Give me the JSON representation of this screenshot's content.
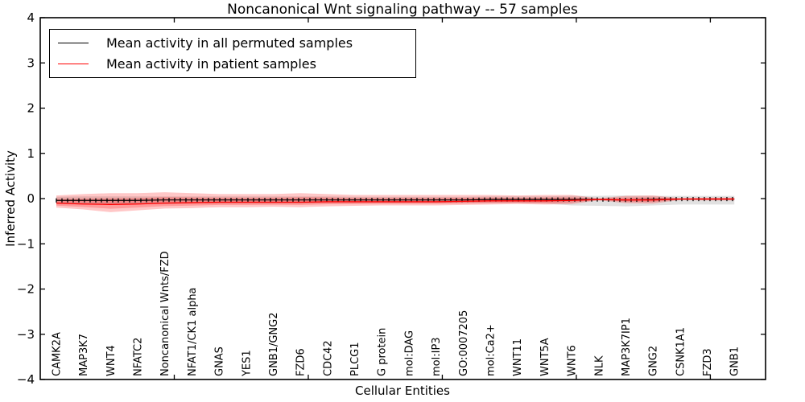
{
  "chart_data": {
    "type": "line",
    "title": "Noncanonical Wnt signaling pathway -- 57 samples",
    "xlabel": "Cellular Entities",
    "ylabel": "Inferred Activity",
    "ylim": [
      -4,
      4
    ],
    "xlim": [
      0,
      27.06
    ],
    "yticks": [
      -4,
      -3,
      -2,
      -1,
      0,
      1,
      2,
      3,
      4
    ],
    "ytick_labels": [
      "−4",
      "−3",
      "−2",
      "−1",
      "0",
      "1",
      "2",
      "3",
      "4"
    ],
    "xticks": [
      5,
      10,
      15,
      20,
      25
    ],
    "x_start": 0.6,
    "x_step": 1.0118,
    "grid": false,
    "legend_position": "upper-left",
    "categories": [
      "CAMK2A",
      "MAP3K7",
      "WNT4",
      "NFATC2",
      "Noncanonical Wnts/FZD",
      "NFAT1/CK1 alpha",
      "GNAS",
      "YES1",
      "GNB1/GNG2",
      "FZD6",
      "CDC42",
      "PLCG1",
      "G protein",
      "mol:DAG",
      "mol:IP3",
      "GO:0007205",
      "mol:Ca2+",
      "WNT11",
      "WNT5A",
      "WNT6",
      "NLK",
      "MAP3K7IP1",
      "GNG2",
      "CSNK1A1",
      "FZD3",
      "GNB1"
    ],
    "series": [
      {
        "name": "Mean activity in all permuted samples",
        "color": "#000000",
        "marker": "vertical-dash",
        "values": [
          -0.04,
          -0.04,
          -0.04,
          -0.04,
          -0.03,
          -0.03,
          -0.03,
          -0.03,
          -0.03,
          -0.03,
          -0.03,
          -0.03,
          -0.03,
          -0.03,
          -0.03,
          -0.03,
          -0.02,
          -0.02,
          -0.02,
          -0.02,
          -0.02,
          -0.03,
          -0.02,
          -0.01,
          -0.01,
          -0.01
        ],
        "band_hi": [
          0.04,
          0.05,
          0.05,
          0.05,
          0.05,
          0.05,
          0.05,
          0.05,
          0.05,
          0.05,
          0.05,
          0.04,
          0.04,
          0.04,
          0.04,
          0.04,
          0.05,
          0.05,
          0.05,
          0.06,
          0.06,
          0.07,
          0.06,
          0.06,
          0.06,
          0.06
        ],
        "band_lo": [
          -0.12,
          -0.13,
          -0.13,
          -0.12,
          -0.12,
          -0.11,
          -0.11,
          -0.11,
          -0.11,
          -0.11,
          -0.1,
          -0.1,
          -0.1,
          -0.1,
          -0.1,
          -0.1,
          -0.1,
          -0.1,
          -0.11,
          -0.15,
          -0.16,
          -0.17,
          -0.15,
          -0.13,
          -0.13,
          -0.13
        ],
        "band_color": "#aaaaaa",
        "band_opacity": 0.35
      },
      {
        "name": "Mean activity in patient samples",
        "color": "#ff0000",
        "marker": "none",
        "values": [
          -0.1,
          -0.12,
          -0.13,
          -0.12,
          -0.1,
          -0.09,
          -0.08,
          -0.08,
          -0.08,
          -0.08,
          -0.07,
          -0.07,
          -0.07,
          -0.07,
          -0.07,
          -0.06,
          -0.05,
          -0.05,
          -0.05,
          -0.04,
          -0.02,
          -0.03,
          -0.03,
          -0.01,
          -0.01,
          -0.01
        ],
        "band_hi": [
          0.07,
          0.1,
          0.12,
          0.12,
          0.14,
          0.12,
          0.1,
          0.1,
          0.1,
          0.12,
          0.1,
          0.08,
          0.08,
          0.08,
          0.08,
          0.08,
          0.08,
          0.07,
          0.08,
          0.08,
          0.01,
          0.06,
          0.07,
          0.01,
          0.02,
          0.02
        ],
        "band_lo": [
          -0.2,
          -0.24,
          -0.3,
          -0.26,
          -0.22,
          -0.21,
          -0.19,
          -0.19,
          -0.18,
          -0.19,
          -0.17,
          -0.16,
          -0.15,
          -0.15,
          -0.15,
          -0.14,
          -0.13,
          -0.12,
          -0.13,
          -0.12,
          -0.04,
          -0.1,
          -0.11,
          -0.03,
          -0.04,
          -0.04
        ],
        "band_color": "#ff0000",
        "band_opacity": 0.22,
        "inner_band_factor": 0.55
      }
    ],
    "legend": [
      {
        "label": "Mean activity in all permuted samples",
        "color": "#000000"
      },
      {
        "label": "Mean activity in patient samples",
        "color": "#ff0000"
      }
    ]
  },
  "colors": {
    "frame": "#000000",
    "background": "#ffffff",
    "permuted_line": "#000000",
    "patient_line": "#ff0000"
  }
}
